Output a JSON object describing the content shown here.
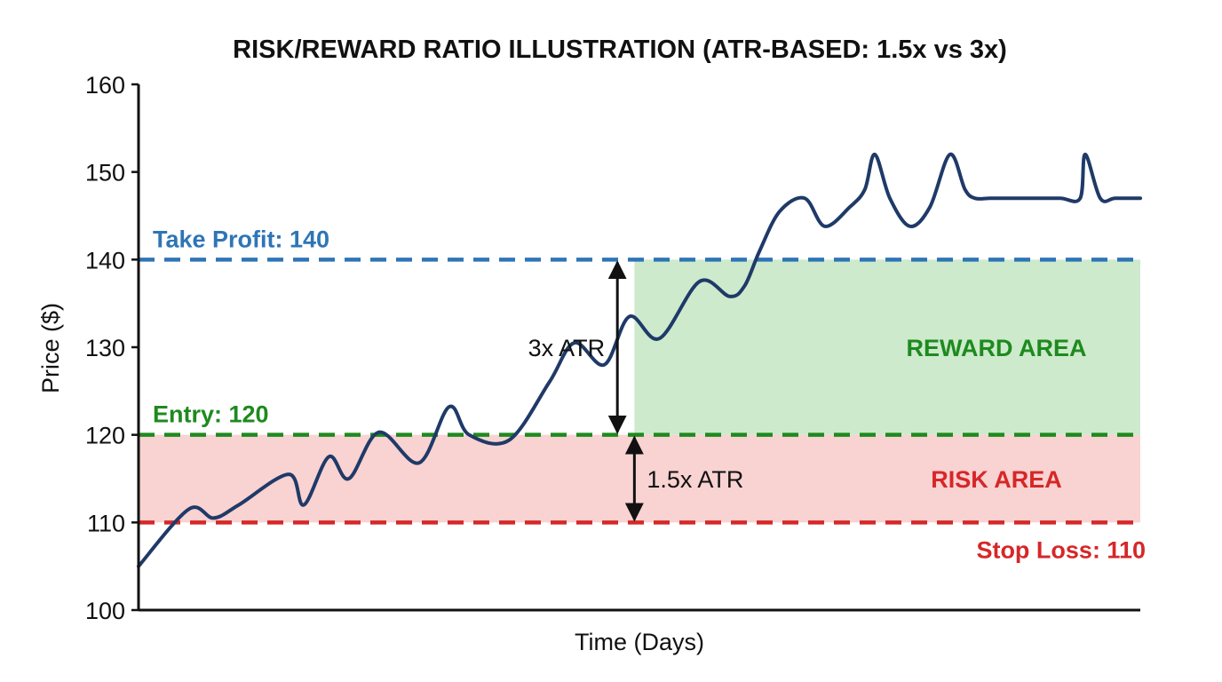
{
  "chart_data": {
    "type": "line",
    "title": "RISK/REWARD RATIO ILLUSTRATION (ATR-BASED: 1.5x vs 3x)",
    "xlabel": "Time (Days)",
    "ylabel": "Price ($)",
    "ylim": [
      100,
      160
    ],
    "xlim": [
      0,
      100
    ],
    "yticks": [
      "100",
      "110",
      "120",
      "130",
      "140",
      "150",
      "160"
    ],
    "grid": false,
    "series": [
      {
        "color": "#1f3a68",
        "x": [
          0,
          5,
          7.5,
          10,
          15,
          16.5,
          19,
          21,
          24,
          28,
          31,
          33,
          37,
          41,
          43.5,
          46.5,
          49,
          52,
          56,
          59,
          60.5,
          62,
          64,
          66.5,
          68.5,
          71,
          72.5,
          73.5,
          75,
          77,
          79,
          81,
          82.5,
          83.5,
          85,
          87,
          89,
          92,
          94,
          96,
          97.5,
          100,
          94.5
        ],
        "y": [
          105,
          111.5,
          110.5,
          112,
          115.5,
          112,
          117.5,
          115,
          120.3,
          116.8,
          123.2,
          120,
          119.4,
          126,
          130.5,
          128,
          133.5,
          131,
          137.5,
          135.8,
          137,
          141,
          145.5,
          147,
          143.8,
          146,
          148,
          152,
          147,
          143.8,
          146,
          152,
          148,
          147,
          147,
          147,
          147,
          147,
          147,
          147,
          147,
          147,
          152
        ]
      }
    ],
    "levels": [
      {
        "name": "Take Profit: 140",
        "value": 140,
        "color": "#2e75b6"
      },
      {
        "name": "Entry: 120",
        "value": 120,
        "color": "#1e8a1e"
      },
      {
        "name": "Stop Loss: 110",
        "value": 110,
        "color": "#d62728"
      }
    ],
    "areas": [
      {
        "label": "REWARD AREA",
        "from": 120,
        "to": 140,
        "x_start": 49.5,
        "fill": "#cdeacd",
        "text_color": "#1e8a1e"
      },
      {
        "label": "RISK AREA",
        "from": 110,
        "to": 120,
        "x_start": 0,
        "fill": "#f9d2d2",
        "text_color": "#d62728"
      }
    ],
    "annotations": [
      {
        "text": "3x ATR",
        "x": 47.8,
        "from": 120,
        "to": 140
      },
      {
        "text": "1.5x ATR",
        "x": 49.5,
        "from": 110,
        "to": 120
      }
    ]
  }
}
